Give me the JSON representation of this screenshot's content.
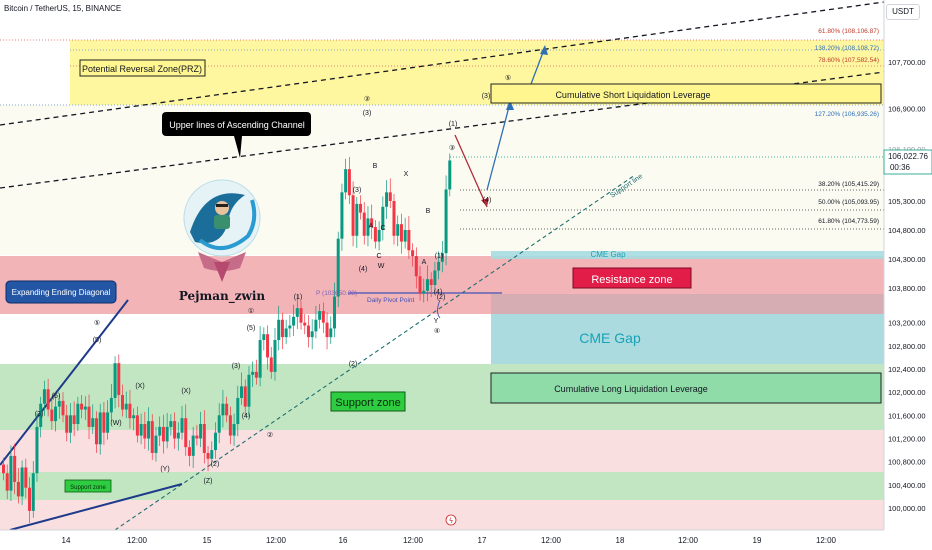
{
  "header": {
    "symbol": "Bitcoin / TetherUS, 15, BINANCE",
    "currency": "USDT"
  },
  "price_axis": {
    "labels": [
      "107,700.00",
      "106,900.00",
      "105,300.00",
      "104,800.00",
      "104,300.00",
      "103,800.00",
      "103,200.00",
      "102,800.00",
      "102,400.00",
      "102,000.00",
      "101,600.00",
      "101,200.00",
      "100,800.00",
      "100,400.00",
      "100,000.00"
    ],
    "current_price": "106,022.76",
    "countdown": "00:36",
    "partial_label": "106,100.00"
  },
  "time_axis": {
    "labels": [
      "14",
      "12:00",
      "15",
      "12:00",
      "16",
      "12:00",
      "17",
      "12:00",
      "18",
      "12:00",
      "19",
      "12:00"
    ]
  },
  "fib_levels": [
    "61.80% (108,106.87)",
    "138.20% (108,108.72)",
    "78.60% (107,582.54)",
    "127.20% (106,935.26)",
    "38.20% (105,415.29)",
    "50.00% (105,093.95)",
    "61.80% (104,773.59)"
  ],
  "annotations": {
    "prz": "Potential Reversal Zone(PRZ)",
    "short_liq": "Cumulative Short Liquidation Leverage",
    "long_liq": "Cumulative Long Liquidation Leverage",
    "upper_channel": "Upper lines of Ascending Channel",
    "expanding": "Expanding Ending Diagonal",
    "resistance": "Resistance zone",
    "cme_gap_small": "CME Gap",
    "cme_gap_big": "CME Gap",
    "support_zone": "Support zone",
    "support_zone_small": "Support zone",
    "support_line": "Support line",
    "pivot_p": "P (103650.38)",
    "pivot": "Daily Pivot Point",
    "brand": "Pejman_zwin"
  },
  "wave_labels": [
    "⑤",
    "(5)",
    "③",
    "(3)",
    "(1)",
    "①",
    "(5)",
    "(3)",
    "(4)",
    "②",
    "(2)",
    "(X)",
    "(W)",
    "(Y)",
    "(Z)",
    "(X)",
    "(3)",
    "(5)",
    "③",
    "(3)",
    "(4)",
    "(1)",
    "(2)",
    "④",
    "(4)",
    "(3)",
    "⑤",
    "(5)",
    "(4)",
    "B",
    "A",
    "C",
    "W",
    "Y",
    "X",
    "B",
    "A",
    "C",
    "(1)",
    "(2)"
  ],
  "colors": {
    "candle_up": "#089981",
    "candle_down": "#f23645",
    "resistance": "#f2a6ab",
    "support": "#b7e0b5",
    "prz": "#fff27a",
    "cme": "#a6d9dd"
  },
  "chart_data": {
    "type": "candlestick",
    "symbol": "Bitcoin / TetherUS",
    "interval": "15",
    "ylim": [
      99900,
      108350
    ],
    "close_series": [
      100600,
      100300,
      100900,
      100450,
      100200,
      100700,
      100350,
      99950,
      100600,
      101400,
      101800,
      102050,
      101700,
      101500,
      101750,
      101850,
      101600,
      101300,
      101600,
      101450,
      101800,
      101700,
      101750,
      101400,
      101550,
      101100,
      101650,
      101300,
      101650,
      101900,
      102500,
      101950,
      101700,
      101800,
      101550,
      101600,
      101250,
      101450,
      101200,
      101500,
      100950,
      101250,
      101400,
      101150,
      101400,
      101500,
      101200,
      101300,
      101550,
      101050,
      100900,
      101250,
      101200,
      101450,
      100950,
      100850,
      101000,
      101300,
      101600,
      101800,
      101600,
      101250,
      101450,
      101900,
      102100,
      101750,
      102300,
      102350,
      102250,
      102900,
      103000,
      102600,
      102350,
      102900,
      103250,
      102950,
      103100,
      103150,
      103300,
      103450,
      103200,
      103150,
      102950,
      103050,
      103250,
      103400,
      103200,
      102950,
      103100,
      103650,
      104650,
      105450,
      105850,
      105400,
      104700,
      105250,
      105100,
      104700,
      105000,
      104850,
      104600,
      104800,
      105200,
      105450,
      105300,
      104700,
      104900,
      104600,
      104800,
      104450,
      104350,
      104000,
      103700,
      103750,
      103950,
      103850,
      104100,
      104250,
      104400,
      105500,
      106000
    ]
  }
}
